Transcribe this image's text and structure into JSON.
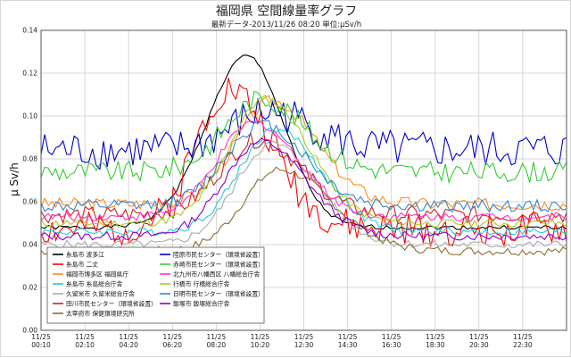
{
  "chart_data": {
    "type": "line",
    "title": "福岡県 空間線量率グラフ",
    "subtitle": "最新データ-2013/11/26 08:20 単位:μSv/h",
    "ylabel": "μ Sv/h",
    "ylim": [
      0,
      0.14
    ],
    "yticks": [
      "0.00",
      "0.02",
      "0.04",
      "0.06",
      "0.08",
      "0.10",
      "0.12",
      "0.14"
    ],
    "x_ticks": [
      [
        "11/25",
        "00:10"
      ],
      [
        "11/25",
        "02:10"
      ],
      [
        "11/25",
        "04:20"
      ],
      [
        "11/25",
        "06:20"
      ],
      [
        "11/25",
        "08:20"
      ],
      [
        "11/25",
        "10:20"
      ],
      [
        "11/25",
        "12:30"
      ],
      [
        "11/25",
        "14:30"
      ],
      [
        "11/25",
        "16:30"
      ],
      [
        "11/25",
        "18:30"
      ],
      [
        "11/25",
        "20:30"
      ],
      [
        "11/25",
        "22:30"
      ]
    ],
    "grid": true,
    "legend_placement": "bottom-left",
    "num_points": 144,
    "series": [
      {
        "name": "糸島市 波多江",
        "color": "#000000",
        "base": 0.048,
        "peak": 0.128,
        "peak_t": 56,
        "sl": 11,
        "sr": 10,
        "noise": 0.001,
        "seed": 1
      },
      {
        "name": "糸島市 二丈",
        "color": "#ff0000",
        "base": 0.047,
        "peak": 0.113,
        "peak_t": 51,
        "sl": 9,
        "sr": 12,
        "noise": 0.008,
        "seed": 2
      },
      {
        "name": "福岡市博多区 福岡県庁",
        "color": "#ff8c1a",
        "base": 0.059,
        "peak": 0.107,
        "peak_t": 63,
        "sl": 10,
        "sr": 12,
        "noise": 0.003,
        "seed": 3
      },
      {
        "name": "糸島市 糸島総合庁舎",
        "color": "#22ccdd",
        "base": 0.046,
        "peak": 0.094,
        "peak_t": 64,
        "sl": 10,
        "sr": 12,
        "noise": 0.002,
        "seed": 4
      },
      {
        "name": "久留米市 久留米総合庁舎",
        "color": "#aaaaaa",
        "base": 0.04,
        "peak": 0.087,
        "peak_t": 63,
        "sl": 10,
        "sr": 12,
        "noise": 0.002,
        "seed": 5
      },
      {
        "name": "田川市民センター（環境省設置）",
        "color": "#cc2222",
        "base": 0.054,
        "peak": 0.089,
        "peak_t": 59,
        "sl": 10,
        "sr": 12,
        "noise": 0.004,
        "seed": 6
      },
      {
        "name": "太宰府市 保健環境研究所",
        "color": "#8a7030",
        "base": 0.037,
        "peak": 0.075,
        "peak_t": 65,
        "sl": 10,
        "sr": 14,
        "noise": 0.002,
        "seed": 7
      },
      {
        "name": "陸原市民センター（環境省設置）",
        "color": "#0000cc",
        "base": 0.084,
        "peak": 0.102,
        "peak_t": 62,
        "sl": 10,
        "sr": 12,
        "noise": 0.009,
        "seed": 8
      },
      {
        "name": "赤崎市民センター（環境省設置）",
        "color": "#33cc33",
        "base": 0.074,
        "peak": 0.108,
        "peak_t": 60,
        "sl": 10,
        "sr": 12,
        "noise": 0.005,
        "seed": 9
      },
      {
        "name": "北九州市八幡西区 八幡総合庁舎",
        "color": "#ff33cc",
        "base": 0.053,
        "peak": 0.097,
        "peak_t": 58,
        "sl": 10,
        "sr": 12,
        "noise": 0.002,
        "seed": 10
      },
      {
        "name": "行橋市 行橋総合庁舎",
        "color": "#aacc22",
        "base": 0.05,
        "peak": 0.108,
        "peak_t": 61,
        "sl": 10,
        "sr": 12,
        "noise": 0.002,
        "seed": 11
      },
      {
        "name": "日明市民センター（環境省設置）",
        "color": "#3388cc",
        "base": 0.058,
        "peak": 0.096,
        "peak_t": 60,
        "sl": 10,
        "sr": 12,
        "noise": 0.003,
        "seed": 12
      },
      {
        "name": "飯塚市 飯塚総合庁舎",
        "color": "#8800cc",
        "base": 0.044,
        "peak": 0.088,
        "peak_t": 60,
        "sl": 10,
        "sr": 12,
        "noise": 0.002,
        "seed": 13
      }
    ]
  }
}
